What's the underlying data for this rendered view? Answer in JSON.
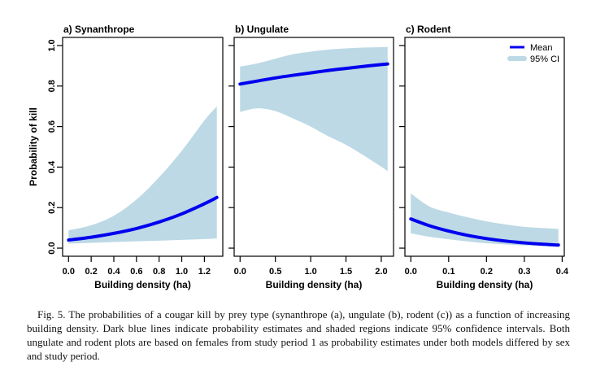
{
  "figure": {
    "caption": "Fig. 5. The probabilities of a cougar kill by prey type (synanthrope (a), ungulate (b), rodent (c)) as a function of increasing building density. Dark blue lines indicate probability estimates and shaded regions indicate 95% confi­dence intervals. Both ungulate and rodent plots are based on females from study period 1 as probability esti­mates under both models differed by sex and study period."
  },
  "colors": {
    "mean": "#0000ee",
    "ci": "#bcd9e5",
    "axis": "#000000"
  },
  "chart_data": [
    {
      "type": "area",
      "panel": "a",
      "title": "a) Synanthrope",
      "xlabel": "Building density (ha)",
      "ylabel": "Probability of kill",
      "xlim": [
        0,
        1.31
      ],
      "ylim": [
        0,
        1
      ],
      "grid": false,
      "xticks": [
        0,
        0.2,
        0.4,
        0.6,
        0.8,
        1.0,
        1.2
      ],
      "xtick_labels": [
        "0.0",
        "0.2",
        "0.4",
        "0.6",
        "0.8",
        "1.0",
        "1.2"
      ],
      "yticks": [
        0,
        0.2,
        0.4,
        0.6,
        0.8,
        1.0
      ],
      "ytick_labels": [
        "0.0",
        "0.2",
        "0.4",
        "0.6",
        "0.8",
        "1.0"
      ],
      "x": [
        0,
        0.2,
        0.4,
        0.6,
        0.8,
        1.0,
        1.2,
        1.31
      ],
      "series": [
        {
          "name": "95% CI",
          "kind": "band",
          "lower": [
            0.022,
            0.026,
            0.03,
            0.034,
            0.037,
            0.041,
            0.045,
            0.048
          ],
          "upper": [
            0.088,
            0.113,
            0.16,
            0.24,
            0.35,
            0.48,
            0.63,
            0.7
          ]
        },
        {
          "name": "Mean",
          "kind": "line",
          "values": [
            0.04,
            0.054,
            0.073,
            0.097,
            0.129,
            0.169,
            0.219,
            0.25
          ]
        }
      ]
    },
    {
      "type": "area",
      "panel": "b",
      "title": "b) Ungulate",
      "xlabel": "Building density (ha)",
      "ylabel": "",
      "xlim": [
        0,
        2.09
      ],
      "ylim": [
        0,
        1
      ],
      "grid": false,
      "xticks": [
        0,
        0.5,
        1.0,
        1.5,
        2.0
      ],
      "xtick_labels": [
        "0.0",
        "0.5",
        "1.0",
        "1.5",
        "2.0"
      ],
      "yticks": [
        0,
        0.2,
        0.4,
        0.6,
        0.8,
        1.0
      ],
      "ytick_labels": [],
      "x": [
        0,
        0.25,
        0.5,
        0.75,
        1.0,
        1.25,
        1.5,
        1.75,
        2.0,
        2.09
      ],
      "series": [
        {
          "name": "95% CI",
          "kind": "band",
          "lower": [
            0.672,
            0.69,
            0.676,
            0.64,
            0.6,
            0.552,
            0.51,
            0.458,
            0.402,
            0.38
          ],
          "upper": [
            0.896,
            0.912,
            0.935,
            0.957,
            0.97,
            0.98,
            0.986,
            0.99,
            0.992,
            0.993
          ]
        },
        {
          "name": "Mean",
          "kind": "line",
          "values": [
            0.81,
            0.825,
            0.84,
            0.853,
            0.865,
            0.877,
            0.887,
            0.897,
            0.906,
            0.909
          ]
        }
      ]
    },
    {
      "type": "area",
      "panel": "c",
      "title": "c) Rodent",
      "xlabel": "Building density (ha)",
      "ylabel": "",
      "xlim": [
        0,
        0.39
      ],
      "ylim": [
        0,
        1
      ],
      "grid": false,
      "xticks": [
        0,
        0.1,
        0.2,
        0.3,
        0.4
      ],
      "xtick_labels": [
        "0.0",
        "0.1",
        "0.2",
        "0.3",
        "0.4"
      ],
      "yticks": [
        0,
        0.2,
        0.4,
        0.6,
        0.8,
        1.0
      ],
      "ytick_labels": [],
      "x": [
        0,
        0.05,
        0.1,
        0.15,
        0.2,
        0.25,
        0.3,
        0.35,
        0.39
      ],
      "series": [
        {
          "name": "95% CI",
          "kind": "band",
          "lower": [
            0.073,
            0.056,
            0.044,
            0.033,
            0.024,
            0.018,
            0.013,
            0.011,
            0.01
          ],
          "upper": [
            0.27,
            0.205,
            0.176,
            0.152,
            0.132,
            0.117,
            0.105,
            0.099,
            0.095
          ]
        },
        {
          "name": "Mean",
          "kind": "line",
          "values": [
            0.144,
            0.11,
            0.084,
            0.063,
            0.047,
            0.035,
            0.026,
            0.019,
            0.015
          ]
        }
      ],
      "legend": {
        "position": "top-right",
        "entries": [
          {
            "label": "Mean",
            "kind": "line"
          },
          {
            "label": "95% CI",
            "kind": "band"
          }
        ]
      }
    }
  ]
}
